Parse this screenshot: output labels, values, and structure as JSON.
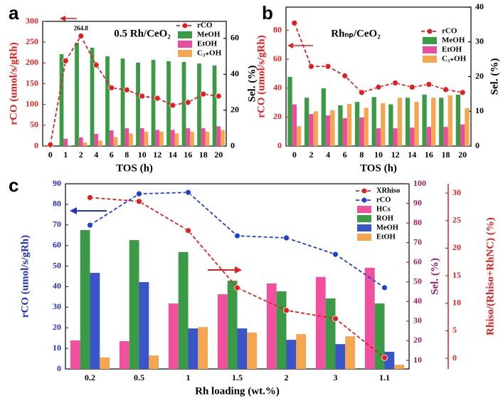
{
  "chart_data": [
    {
      "type": "bar",
      "panel_label": "a",
      "title": "0.5 Rh/CeO₂",
      "xlabel": "TOS (h)",
      "ylabel": "rCO (umol/s/gRh)",
      "y2label": "Sel. (%)",
      "categories": [
        "0",
        "1",
        "2",
        "4",
        "6",
        "8",
        "10",
        "12",
        "14",
        "16",
        "18",
        "20"
      ],
      "ylim": [
        0,
        300
      ],
      "yticks": [
        0,
        50,
        100,
        150,
        200,
        250,
        300
      ],
      "ycolor": "#e02020",
      "y2lim": [
        0,
        69.5
      ],
      "y2ticks": [
        0,
        20,
        40,
        60
      ],
      "y2color": "#000000",
      "legend": "upper right",
      "annotations": [
        "264.8"
      ],
      "series": [
        {
          "name": "rCO",
          "type": "line",
          "axis": "y",
          "color": "#e02020",
          "values": [
            3,
            205,
            264.8,
            195,
            140,
            135,
            120,
            115,
            98,
            105,
            125,
            120
          ]
        },
        {
          "name": "MeOH",
          "axis": "y2",
          "color": "#3a9a45",
          "values": [
            null,
            51.2,
            57.6,
            54.8,
            50,
            48.8,
            46.5,
            48,
            47.3,
            46.9,
            46,
            44.9
          ]
        },
        {
          "name": "EtOH",
          "axis": "y2",
          "color": "#ea4c9e",
          "values": [
            null,
            4,
            4.8,
            6.8,
            8.7,
            9.9,
            9.9,
            9,
            9,
            9.9,
            9.9,
            11
          ]
        },
        {
          "name": "C₃₊OH",
          "axis": "y2",
          "color": "#f4a650",
          "values": [
            null,
            0.5,
            2,
            3,
            5,
            7,
            8,
            8,
            7,
            8,
            8,
            9
          ]
        }
      ]
    },
    {
      "type": "bar",
      "panel_label": "b",
      "title": "Rhₙₚ/CeO₂",
      "xlabel": "TOS (h)",
      "ylabel": "rCO (umol/s/gRh)",
      "y2label": "Sel. (%)",
      "categories": [
        "0",
        "2",
        "4",
        "6",
        "8",
        "10",
        "12",
        "14",
        "16",
        "18",
        "20"
      ],
      "ylim": [
        0,
        96
      ],
      "yticks": [
        0,
        20,
        40,
        60,
        80
      ],
      "ycolor": "#e02020",
      "y2lim": [
        0,
        40
      ],
      "y2ticks": [
        0,
        10,
        20,
        30,
        40
      ],
      "y2color": "#000000",
      "legend": "upper right",
      "series": [
        {
          "name": "rCO",
          "type": "line",
          "axis": "y",
          "color": "#e02020",
          "values": [
            85,
            55,
            55,
            48.5,
            37,
            40.7,
            43.6,
            40.7,
            42.6,
            39,
            37
          ]
        },
        {
          "name": "MeOH",
          "axis": "y2",
          "color": "#3a9a45",
          "values": [
            19.9,
            13.9,
            16.6,
            11.7,
            12.7,
            14.1,
            12,
            13.9,
            14.8,
            13.9,
            14.8
          ]
        },
        {
          "name": "EtOH",
          "axis": "y2",
          "color": "#ea4c9e",
          "values": [
            12,
            9.2,
            8.8,
            8,
            8.2,
            5.1,
            5.1,
            5.3,
            5.5,
            5.5,
            6.2
          ]
        },
        {
          "name": "C₃₊OH",
          "axis": "y2",
          "color": "#f4a650",
          "values": [
            5.7,
            10,
            10.3,
            12.1,
            11,
            12.3,
            13.9,
            12.7,
            13.9,
            14.6,
            10.9
          ]
        }
      ]
    },
    {
      "type": "bar",
      "panel_label": "c",
      "xlabel": "Rh loading (wt.%)",
      "ylabel": "rCO (umol/s/gRh)",
      "y2label": "Sel. (%)",
      "y3label": "Rhiso/(Rhiso+RhNC) (%)",
      "categories": [
        "0.2",
        "0.5",
        "1",
        "1.5",
        "2",
        "3",
        "1.1"
      ],
      "ylim": [
        0,
        90
      ],
      "yticks": [
        0,
        10,
        20,
        30,
        40,
        50,
        60,
        70,
        80,
        90
      ],
      "ycolor": "#2030c8",
      "y2lim": [
        5.65,
        100
      ],
      "y2ticks": [
        10,
        20,
        30,
        40,
        50,
        60,
        70,
        80,
        90,
        100
      ],
      "y2color": "#a0205a",
      "y3lim": [
        -1.94,
        31.7
      ],
      "y3ticks": [
        0,
        5,
        10,
        15,
        20,
        25,
        30
      ],
      "y3color": "#e02020",
      "legend": "upper right",
      "series": [
        {
          "name": "XRhiso",
          "type": "line",
          "axis": "y3",
          "color": "#e02020",
          "values": [
            29.2,
            28.5,
            23.2,
            12.8,
            8.7,
            7.2,
            0.1
          ]
        },
        {
          "name": "rCO",
          "type": "line",
          "axis": "y",
          "color": "#2040d0",
          "values": [
            69.9,
            85.1,
            85.8,
            64.7,
            63.7,
            55.7,
            39.5
          ]
        },
        {
          "name": "HCs",
          "axis": "y2",
          "color": "#f0509e",
          "values": [
            20.2,
            19.8,
            39,
            43.7,
            49.2,
            52.5,
            57.2
          ]
        },
        {
          "name": "ROH",
          "axis": "y2",
          "color": "#3a9a45",
          "values": [
            76.4,
            71.3,
            65.2,
            50.6,
            45.2,
            41.6,
            39
          ]
        },
        {
          "name": "MeOH",
          "axis": "y2",
          "color": "#3a55c8",
          "values": [
            54.6,
            49.9,
            26.3,
            26.3,
            20.5,
            18.3,
            14.4
          ]
        },
        {
          "name": "EtOH",
          "axis": "y2",
          "color": "#f4a650",
          "values": [
            11.5,
            12.5,
            27,
            24.2,
            23.4,
            22.3,
            7.8
          ]
        }
      ]
    }
  ]
}
